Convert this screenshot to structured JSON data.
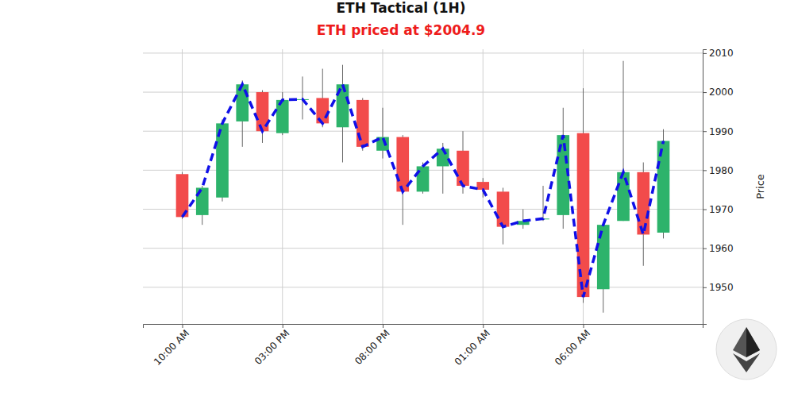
{
  "chart_data": {
    "type": "candlestick",
    "title": "ETH Tactical (1H)",
    "subtitle": "ETH priced at $2004.9",
    "y_label": "Price",
    "categories": [
      "10:00 AM",
      null,
      null,
      null,
      null,
      "03:00 PM",
      null,
      null,
      null,
      null,
      "08:00 PM",
      null,
      null,
      null,
      null,
      "01:00 AM",
      null,
      null,
      null,
      null,
      "06:00 AM",
      null,
      null,
      null,
      null
    ],
    "open": [
      1979,
      1968.5,
      1973,
      1992.5,
      2000,
      1989.5,
      1998,
      1998.5,
      1991,
      1998,
      1985,
      1988.5,
      1974.5,
      1981,
      1985,
      1977,
      1974.5,
      1966,
      1967.5,
      1968.5,
      1989.5,
      1949.5,
      1967,
      1979.5,
      1964
    ],
    "high": [
      1979.5,
      1976,
      1993,
      2003,
      2000.5,
      2000,
      2004,
      2006,
      2007,
      1998.5,
      1996,
      1989,
      1982,
      1987,
      1990,
      1978,
      1975.5,
      1970,
      1976,
      1996,
      2001,
      1966.5,
      2008,
      1982,
      1990.5
    ],
    "low": [
      1967.5,
      1966,
      1972,
      1986,
      1987,
      1989,
      1993,
      1991,
      1982,
      1985,
      1983,
      1966,
      1974,
      1974,
      1974,
      1973,
      1961,
      1965,
      1967,
      1965,
      1946,
      1943.5,
      1967,
      1955.5,
      1962.5
    ],
    "close": [
      1968,
      1975.5,
      1992,
      2002,
      1990,
      1998,
      1998.2,
      1992,
      2002,
      1986,
      1988.5,
      1974.5,
      1981,
      1985.5,
      1976,
      1975,
      1965.5,
      1967,
      1967.6,
      1989,
      1947.5,
      1966,
      1979.5,
      1963.5,
      1987.5
    ],
    "colors": [
      "#f24b4b",
      "#2db36b",
      "#2db36b",
      "#2db36b",
      "#f24b4b",
      "#2db36b",
      "#2db36b",
      "#f24b4b",
      "#2db36b",
      "#f24b4b",
      "#2db36b",
      "#f24b4b",
      "#2db36b",
      "#2db36b",
      "#f24b4b",
      "#f24b4b",
      "#f24b4b",
      "#2db36b",
      "#2db36b",
      "#2db36b",
      "#f24b4b",
      "#2db36b",
      "#2db36b",
      "#f24b4b",
      "#2db36b"
    ],
    "color": "#1010e8",
    "line_style": "dashed",
    "ylim": [
      1940.6,
      2011
    ],
    "yticks": [
      1950,
      1960,
      1970,
      1980,
      1990,
      2000,
      2010
    ],
    "grid": true
  }
}
